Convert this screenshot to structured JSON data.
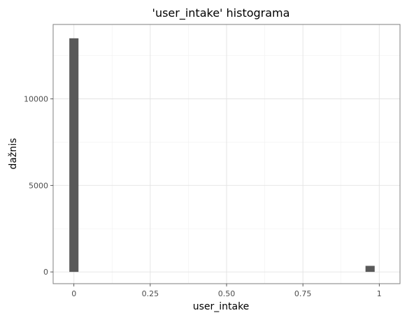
{
  "chart_data": {
    "type": "bar",
    "title": "'user_intake' histograma",
    "xlabel": "user_intake",
    "ylabel": "dažnis",
    "xlim": [
      -0.068,
      1.068
    ],
    "ylim": [
      -680,
      14300
    ],
    "x_ticks": [
      0,
      0.25,
      0.5,
      0.75,
      1
    ],
    "x_tick_labels": [
      "0",
      "0.25",
      "0.50",
      "0.75",
      "1"
    ],
    "y_ticks": [
      0,
      5000,
      10000
    ],
    "y_tick_labels": [
      "0",
      "5000",
      "10000"
    ],
    "bin_width": 0.03,
    "bins": [
      {
        "x": 0.0,
        "count": 13500
      },
      {
        "x": 0.97,
        "count": 350
      }
    ],
    "grid": true,
    "legend": "none"
  },
  "colors": {
    "bar": "#595959",
    "panel_border": "#7f7f7f",
    "grid_major": "#e3e3e3",
    "grid_minor": "#f1f1f1",
    "tick_text": "#4d4d4d"
  }
}
